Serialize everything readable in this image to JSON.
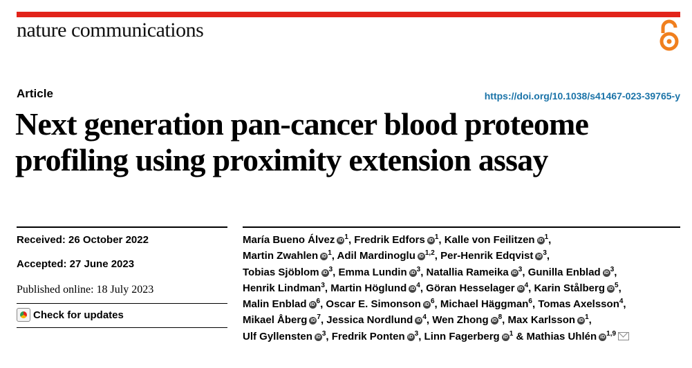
{
  "header": {
    "journal": "nature communications",
    "accent_color": "#e2231a",
    "oa_color": "#f07f1d"
  },
  "article": {
    "type": "Article",
    "doi": "https://doi.org/10.1038/s41467-023-39765-y",
    "title_line1": "Next generation pan-cancer blood proteome",
    "title_line2": "profiling using proximity extension assay"
  },
  "dates": {
    "received": "Received: 26 October 2022",
    "accepted": "Accepted: 27 June 2023",
    "published": "Published online: 18 July 2023"
  },
  "check_updates": "Check for updates",
  "authors": [
    {
      "name": "María Bueno Álvez",
      "orcid": true,
      "sup": "1"
    },
    {
      "name": "Fredrik Edfors",
      "orcid": true,
      "sup": "1"
    },
    {
      "name": "Kalle von Feilitzen",
      "orcid": true,
      "sup": "1"
    },
    {
      "name": "Martin Zwahlen",
      "orcid": true,
      "sup": "1"
    },
    {
      "name": "Adil Mardinoglu",
      "orcid": true,
      "sup": "1,2"
    },
    {
      "name": "Per-Henrik Edqvist",
      "orcid": true,
      "sup": "3"
    },
    {
      "name": "Tobias Sjöblom",
      "orcid": true,
      "sup": "3"
    },
    {
      "name": "Emma Lundin",
      "orcid": true,
      "sup": "3"
    },
    {
      "name": "Natallia Rameika",
      "orcid": true,
      "sup": "3"
    },
    {
      "name": "Gunilla Enblad",
      "orcid": true,
      "sup": "3"
    },
    {
      "name": "Henrik Lindman",
      "orcid": false,
      "sup": "3"
    },
    {
      "name": "Martin Höglund",
      "orcid": true,
      "sup": "4"
    },
    {
      "name": "Göran Hesselager",
      "orcid": true,
      "sup": "4"
    },
    {
      "name": "Karin Stålberg",
      "orcid": true,
      "sup": "5"
    },
    {
      "name": "Malin Enblad",
      "orcid": true,
      "sup": "6"
    },
    {
      "name": "Oscar E. Simonson",
      "orcid": true,
      "sup": "6"
    },
    {
      "name": "Michael Häggman",
      "orcid": false,
      "sup": "6"
    },
    {
      "name": "Tomas Axelsson",
      "orcid": false,
      "sup": "4"
    },
    {
      "name": "Mikael Åberg",
      "orcid": true,
      "sup": "7"
    },
    {
      "name": "Jessica Nordlund",
      "orcid": true,
      "sup": "4"
    },
    {
      "name": "Wen Zhong",
      "orcid": true,
      "sup": "8"
    },
    {
      "name": "Max Karlsson",
      "orcid": true,
      "sup": "1"
    },
    {
      "name": "Ulf Gyllensten",
      "orcid": true,
      "sup": "3"
    },
    {
      "name": "Fredrik Ponten",
      "orcid": true,
      "sup": "3"
    },
    {
      "name": "Linn Fagerberg",
      "orcid": true,
      "sup": "1"
    },
    {
      "name": "Mathias Uhlén",
      "orcid": true,
      "sup": "1,9"
    }
  ],
  "author_lines": [
    [
      0,
      1,
      2
    ],
    [
      3,
      4,
      5
    ],
    [
      6,
      7,
      8,
      9
    ],
    [
      10,
      11,
      12,
      13
    ],
    [
      14,
      15,
      16,
      17
    ],
    [
      18,
      19,
      20,
      21
    ],
    [
      22,
      23,
      24,
      25
    ]
  ],
  "orcid_glyph": "iD",
  "joiner_final": "&"
}
